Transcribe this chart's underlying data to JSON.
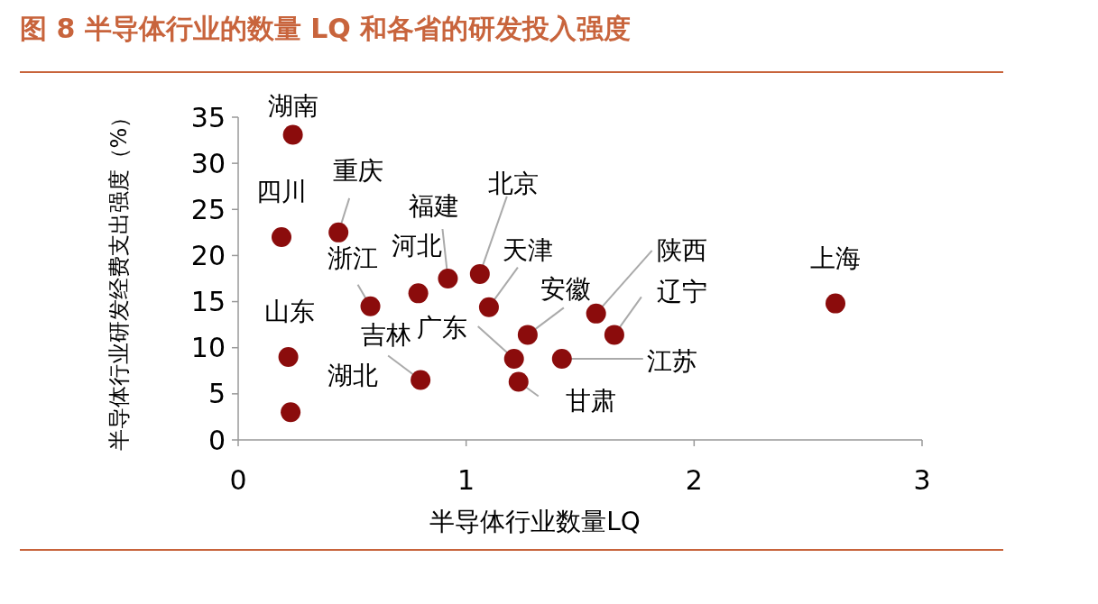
{
  "chart_data": {
    "type": "scatter",
    "title": "图 8 半导体行业的数量 LQ 和各省的研发投入强度",
    "xlabel": "半导体行业数量LQ",
    "ylabel": "半导体行业研发经费支出强度（%）",
    "series": [
      {
        "color": "#8b0c0c",
        "x": [
          0.24,
          0.19,
          0.44,
          0.58,
          0.79,
          0.92,
          1.06,
          1.1,
          0.22,
          0.23,
          0.8,
          1.21,
          1.23,
          1.27,
          1.42,
          1.57,
          1.65,
          2.62
        ],
        "values": [
          33.1,
          22,
          22.5,
          14.5,
          15.9,
          17.5,
          18,
          14.4,
          9,
          3,
          6.5,
          8.8,
          6.3,
          11.4,
          8.8,
          13.7,
          11.4,
          14.8
        ]
      }
    ],
    "annotations": [
      {
        "text": "湖南",
        "x": 0.24,
        "y": 33.1
      },
      {
        "text": "四川",
        "x": 0.19,
        "y": 22
      },
      {
        "text": "重庆",
        "x": 0.44,
        "y": 22.5
      },
      {
        "text": "浙江",
        "x": 0.58,
        "y": 14.5
      },
      {
        "text": "河北",
        "x": 0.79,
        "y": 15.9
      },
      {
        "text": "福建",
        "x": 0.92,
        "y": 17.5
      },
      {
        "text": "北京",
        "x": 1.06,
        "y": 18
      },
      {
        "text": "天津",
        "x": 1.1,
        "y": 14.4
      },
      {
        "text": "山东",
        "x": 0.22,
        "y": 9
      },
      {
        "text": "湖北",
        "x": 0.23,
        "y": 3
      },
      {
        "text": "吉林",
        "x": 0.8,
        "y": 6.5
      },
      {
        "text": "广东",
        "x": 1.21,
        "y": 8.8
      },
      {
        "text": "甘肃",
        "x": 1.23,
        "y": 6.3
      },
      {
        "text": "安徽",
        "x": 1.27,
        "y": 11.4
      },
      {
        "text": "江苏",
        "x": 1.42,
        "y": 8.8
      },
      {
        "text": "陕西",
        "x": 1.57,
        "y": 13.7
      },
      {
        "text": "辽宁",
        "x": 1.65,
        "y": 11.4
      },
      {
        "text": "上海",
        "x": 2.62,
        "y": 14.8
      }
    ],
    "xlim": [
      0,
      3
    ],
    "xticks": [
      0,
      1,
      2,
      3
    ],
    "ylim": [
      0,
      35
    ],
    "yticks": [
      0,
      5,
      10,
      15,
      20,
      25,
      30,
      35
    ],
    "marker": "circle",
    "grid": false
  }
}
